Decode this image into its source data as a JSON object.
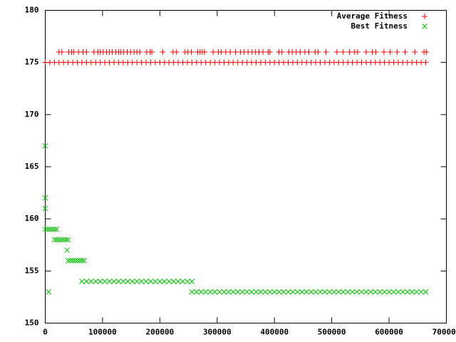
{
  "chart_data": {
    "type": "scatter",
    "xlim": [
      0,
      700000
    ],
    "ylim": [
      150,
      180
    ],
    "xticks": [
      0,
      100000,
      200000,
      300000,
      400000,
      500000,
      600000,
      700000
    ],
    "yticks": [
      150,
      155,
      160,
      165,
      170,
      175,
      180
    ],
    "legend": "top-right",
    "series": [
      {
        "name": "Average Fitness",
        "color": "#ff0000",
        "marker": "plus",
        "x": [
          0,
          8000,
          16000,
          24000,
          32000,
          40000,
          48000,
          56000,
          64000,
          72000,
          80000,
          88000,
          96000,
          104000,
          112000,
          120000,
          128000,
          136000,
          144000,
          152000,
          160000,
          168000,
          176000,
          184000,
          192000,
          200000,
          208000,
          216000,
          224000,
          232000,
          240000,
          248000,
          256000,
          264000,
          272000,
          280000,
          288000,
          296000,
          304000,
          312000,
          320000,
          328000,
          336000,
          344000,
          352000,
          360000,
          368000,
          376000,
          384000,
          392000,
          400000,
          408000,
          416000,
          424000,
          432000,
          440000,
          448000,
          456000,
          464000,
          472000,
          480000,
          488000,
          496000,
          504000,
          512000,
          520000,
          528000,
          536000,
          544000,
          552000,
          560000,
          568000,
          576000,
          584000,
          592000,
          600000,
          608000,
          616000,
          624000,
          632000,
          640000,
          648000,
          656000,
          664000,
          24000,
          29000,
          41000,
          46000,
          50000,
          58000,
          66000,
          72000,
          85000,
          92000,
          96000,
          101000,
          107000,
          112000,
          117000,
          123000,
          128000,
          132000,
          137000,
          143000,
          149000,
          155000,
          160000,
          165000,
          177000,
          183000,
          186000,
          205000,
          223000,
          229000,
          244000,
          249000,
          255000,
          266000,
          270000,
          274000,
          278000,
          293000,
          302000,
          307000,
          315000,
          323000,
          332000,
          341000,
          347000,
          354000,
          361000,
          367000,
          373000,
          380000,
          389000,
          392000,
          408000,
          413000,
          425000,
          431000,
          438000,
          445000,
          453000,
          460000,
          471000,
          476000,
          490000,
          509000,
          520000,
          531000,
          540000,
          545000,
          560000,
          571000,
          577000,
          591000,
          602000,
          614000,
          628000,
          645000,
          661000,
          665000
        ],
        "values": [
          175,
          175,
          175,
          175,
          175,
          175,
          175,
          175,
          175,
          175,
          175,
          175,
          175,
          175,
          175,
          175,
          175,
          175,
          175,
          175,
          175,
          175,
          175,
          175,
          175,
          175,
          175,
          175,
          175,
          175,
          175,
          175,
          175,
          175,
          175,
          175,
          175,
          175,
          175,
          175,
          175,
          175,
          175,
          175,
          175,
          175,
          175,
          175,
          175,
          175,
          175,
          175,
          175,
          175,
          175,
          175,
          175,
          175,
          175,
          175,
          175,
          175,
          175,
          175,
          175,
          175,
          175,
          175,
          175,
          175,
          175,
          175,
          175,
          175,
          175,
          175,
          175,
          175,
          175,
          175,
          175,
          175,
          175,
          175,
          176,
          176,
          176,
          176,
          176,
          176,
          176,
          176,
          176,
          176,
          176,
          176,
          176,
          176,
          176,
          176,
          176,
          176,
          176,
          176,
          176,
          176,
          176,
          176,
          176,
          176,
          176,
          176,
          176,
          176,
          176,
          176,
          176,
          176,
          176,
          176,
          176,
          176,
          176,
          176,
          176,
          176,
          176,
          176,
          176,
          176,
          176,
          176,
          176,
          176,
          176,
          176,
          176,
          176,
          176,
          176,
          176,
          176,
          176,
          176,
          176,
          176,
          176,
          176,
          176,
          176,
          176,
          176,
          176,
          176,
          176,
          176,
          176,
          176,
          176,
          176,
          176,
          176
        ]
      },
      {
        "name": "Best Fitness",
        "color": "#00c000",
        "marker": "cross",
        "x": [
          0,
          0,
          0,
          6000,
          0,
          4000,
          8000,
          12000,
          16000,
          20000,
          16000,
          20000,
          24000,
          28000,
          32000,
          36000,
          40000,
          38000,
          40000,
          44000,
          48000,
          52000,
          56000,
          60000,
          64000,
          68000,
          64000,
          72000,
          80000,
          88000,
          96000,
          104000,
          112000,
          120000,
          128000,
          136000,
          144000,
          152000,
          160000,
          168000,
          176000,
          184000,
          192000,
          200000,
          208000,
          216000,
          224000,
          232000,
          240000,
          248000,
          256000,
          256000,
          264000,
          272000,
          280000,
          288000,
          296000,
          304000,
          312000,
          320000,
          328000,
          336000,
          344000,
          352000,
          360000,
          368000,
          376000,
          384000,
          392000,
          400000,
          408000,
          416000,
          424000,
          432000,
          440000,
          448000,
          456000,
          464000,
          472000,
          480000,
          488000,
          496000,
          504000,
          512000,
          520000,
          528000,
          536000,
          544000,
          552000,
          560000,
          568000,
          576000,
          584000,
          592000,
          600000,
          608000,
          616000,
          624000,
          632000,
          640000,
          648000,
          656000,
          664000
        ],
        "values": [
          167,
          162,
          161,
          153,
          159,
          159,
          159,
          159,
          159,
          159,
          158,
          158,
          158,
          158,
          158,
          158,
          158,
          157,
          156,
          156,
          156,
          156,
          156,
          156,
          156,
          156,
          154,
          154,
          154,
          154,
          154,
          154,
          154,
          154,
          154,
          154,
          154,
          154,
          154,
          154,
          154,
          154,
          154,
          154,
          154,
          154,
          154,
          154,
          154,
          154,
          154,
          153,
          153,
          153,
          153,
          153,
          153,
          153,
          153,
          153,
          153,
          153,
          153,
          153,
          153,
          153,
          153,
          153,
          153,
          153,
          153,
          153,
          153,
          153,
          153,
          153,
          153,
          153,
          153,
          153,
          153,
          153,
          153,
          153,
          153,
          153,
          153,
          153,
          153,
          153,
          153,
          153,
          153,
          153,
          153,
          153,
          153,
          153,
          153,
          153,
          153,
          153,
          153
        ]
      }
    ]
  }
}
